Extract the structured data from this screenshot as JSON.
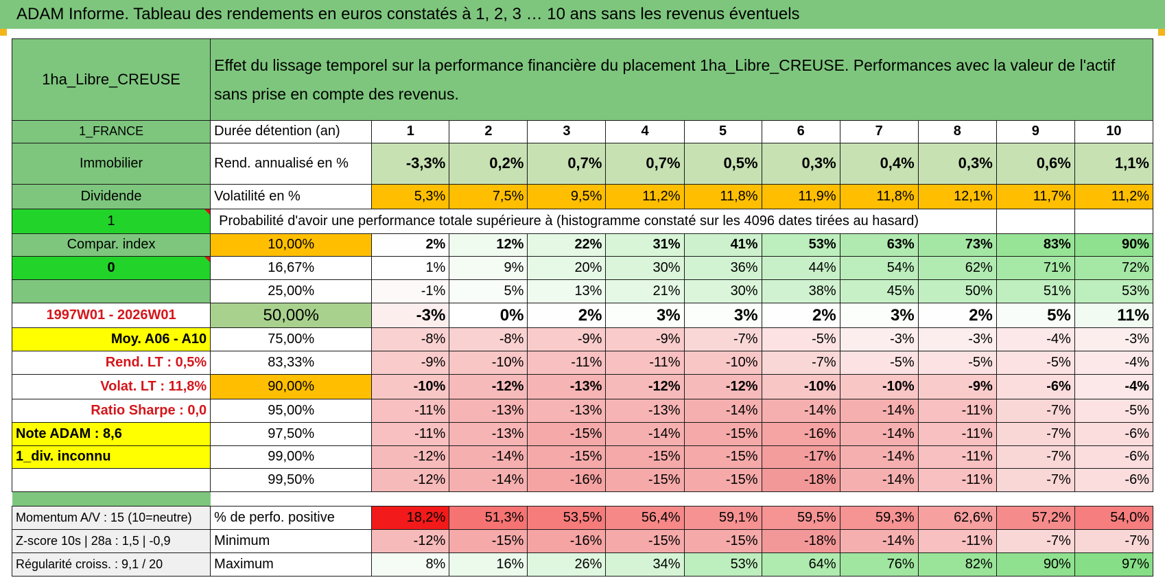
{
  "title": "ADAM Informe. Tableau des rendements en euros constatés à 1, 2, 3 … 10 ans sans les revenus éventuels",
  "header": {
    "asset": "1ha_Libre_CREUSE",
    "description": "Effet du lissage temporel sur la performance financière du placement 1ha_Libre_CREUSE. Performances avec la valeur de l'actif sans prise en compte des revenus."
  },
  "left": {
    "country": "1_FRANCE",
    "category": "Immobilier",
    "type": "Dividende",
    "flag1": "1",
    "compar": "Compar. index",
    "flag0": "0",
    "period": "1997W01 - 2026W01",
    "moy": "Moy. A06 - A10",
    "rend_lt": "Rend. LT :    0,5%",
    "volat_lt": "Volat. LT :    11,8%",
    "sharpe": "Ratio Sharpe :    0,0",
    "note": "Note ADAM : 8,6",
    "div": "1_div. inconnu"
  },
  "labels": {
    "duree": "Durée détention (an)",
    "rend": "Rend. annualisé en %",
    "vol": "Volatilité en %",
    "prob": "Probabilité d'avoir une performance totale supérieure à (histogramme constaté sur les 4096 dates tirées au hasard)"
  },
  "years": [
    "1",
    "2",
    "3",
    "4",
    "5",
    "6",
    "7",
    "8",
    "9",
    "10"
  ],
  "rend": [
    "-3,3%",
    "0,2%",
    "0,7%",
    "0,7%",
    "0,5%",
    "0,3%",
    "0,4%",
    "0,3%",
    "0,6%",
    "1,1%"
  ],
  "vol": [
    "5,3%",
    "7,5%",
    "9,5%",
    "11,2%",
    "11,8%",
    "11,9%",
    "11,8%",
    "12,1%",
    "11,7%",
    "11,2%"
  ],
  "prob_rows": [
    {
      "pct": "10,00%",
      "values": [
        "2%",
        "12%",
        "22%",
        "31%",
        "41%",
        "53%",
        "63%",
        "73%",
        "83%",
        "90%"
      ]
    },
    {
      "pct": "16,67%",
      "values": [
        "1%",
        "9%",
        "20%",
        "30%",
        "36%",
        "44%",
        "54%",
        "62%",
        "71%",
        "72%"
      ]
    },
    {
      "pct": "25,00%",
      "values": [
        "-1%",
        "5%",
        "13%",
        "21%",
        "30%",
        "38%",
        "45%",
        "50%",
        "51%",
        "53%"
      ]
    },
    {
      "pct": "50,00%",
      "values": [
        "-3%",
        "0%",
        "2%",
        "3%",
        "3%",
        "2%",
        "3%",
        "2%",
        "5%",
        "11%"
      ]
    },
    {
      "pct": "75,00%",
      "values": [
        "-8%",
        "-8%",
        "-9%",
        "-9%",
        "-7%",
        "-5%",
        "-3%",
        "-3%",
        "-4%",
        "-3%"
      ]
    },
    {
      "pct": "83,33%",
      "values": [
        "-9%",
        "-10%",
        "-11%",
        "-11%",
        "-10%",
        "-7%",
        "-5%",
        "-5%",
        "-5%",
        "-4%"
      ]
    },
    {
      "pct": "90,00%",
      "values": [
        "-10%",
        "-12%",
        "-13%",
        "-12%",
        "-12%",
        "-10%",
        "-10%",
        "-9%",
        "-6%",
        "-4%"
      ]
    },
    {
      "pct": "95,00%",
      "values": [
        "-11%",
        "-13%",
        "-13%",
        "-13%",
        "-14%",
        "-14%",
        "-14%",
        "-11%",
        "-7%",
        "-5%"
      ]
    },
    {
      "pct": "97,50%",
      "values": [
        "-11%",
        "-13%",
        "-15%",
        "-14%",
        "-15%",
        "-16%",
        "-14%",
        "-11%",
        "-7%",
        "-6%"
      ]
    },
    {
      "pct": "99,00%",
      "values": [
        "-12%",
        "-14%",
        "-15%",
        "-15%",
        "-15%",
        "-17%",
        "-14%",
        "-11%",
        "-7%",
        "-6%"
      ]
    },
    {
      "pct": "99,50%",
      "values": [
        "-12%",
        "-14%",
        "-16%",
        "-15%",
        "-15%",
        "-18%",
        "-14%",
        "-11%",
        "-7%",
        "-6%"
      ]
    }
  ],
  "bottom": {
    "momentum": "Momentum A/V : 15 (10=neutre)",
    "zscore": "Z-score 10s | 28a : 1,5 | -0,9",
    "regul": "Régularité croiss. : 9,1 / 20",
    "pos_label": "% de perfo. positive",
    "min_label": "Minimum",
    "max_label": "Maximum",
    "pos": [
      "18,2%",
      "51,3%",
      "53,5%",
      "56,4%",
      "59,1%",
      "59,5%",
      "59,3%",
      "62,6%",
      "57,2%",
      "54,0%"
    ],
    "min": [
      "-12%",
      "-15%",
      "-16%",
      "-15%",
      "-15%",
      "-18%",
      "-14%",
      "-11%",
      "-7%",
      "-7%"
    ],
    "max": [
      "8%",
      "16%",
      "26%",
      "34%",
      "53%",
      "64%",
      "76%",
      "82%",
      "90%",
      "97%"
    ]
  },
  "colors": {
    "header_green": "#7ec67e",
    "bright_green": "#22d32a",
    "yellow": "#ffff00",
    "orange": "#ffbf00",
    "red_text": "#d4161b"
  }
}
